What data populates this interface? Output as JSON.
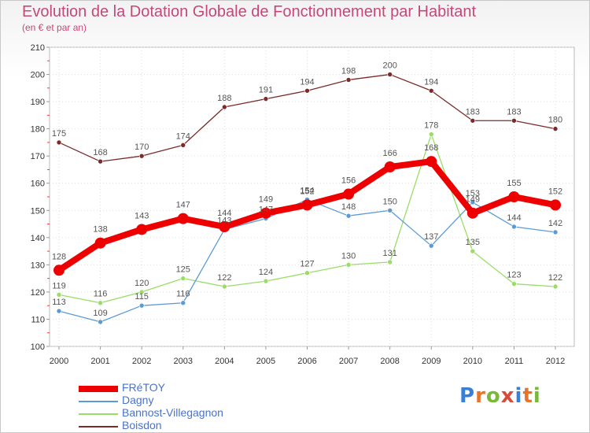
{
  "header": {
    "title": "Evolution de la Dotation Globale de Fonctionnement par Habitant",
    "subtitle": "(en € et par an)"
  },
  "logo": {
    "text": "Proxiti"
  },
  "colors": {
    "title": "#c44878",
    "axis_label": "#333333",
    "value_label": "#555555",
    "grid": "#dddddd",
    "legend_text": "#4a72cc"
  },
  "chart_data": {
    "type": "line",
    "x": [
      "2000",
      "2001",
      "2002",
      "2003",
      "2004",
      "2005",
      "2006",
      "2007",
      "2008",
      "2009",
      "2010",
      "2011",
      "2012"
    ],
    "ylim": [
      100,
      210
    ],
    "yticks": [
      100,
      110,
      120,
      130,
      140,
      150,
      160,
      170,
      180,
      190,
      200,
      210
    ],
    "grid": true,
    "legend_position": "bottom-left",
    "series": [
      {
        "name": "FRéTOY",
        "color": "#ee0000",
        "values": [
          128,
          138,
          143,
          147,
          144,
          149,
          152,
          156,
          166,
          168,
          149,
          155,
          152
        ]
      },
      {
        "name": "Dagny",
        "color": "#5b9bd5",
        "values": [
          113,
          109,
          115,
          116,
          143,
          147,
          154,
          148,
          150,
          137,
          153,
          144,
          142
        ]
      },
      {
        "name": "Bannost-Villegagnon",
        "color": "#99dd66",
        "values": [
          119,
          116,
          120,
          125,
          122,
          124,
          127,
          130,
          131,
          178,
          135,
          123,
          122
        ]
      },
      {
        "name": "Boisdon",
        "color": "#7b2b2b",
        "values": [
          175,
          168,
          170,
          174,
          188,
          191,
          194,
          198,
          200,
          194,
          183,
          183,
          180
        ]
      }
    ]
  }
}
